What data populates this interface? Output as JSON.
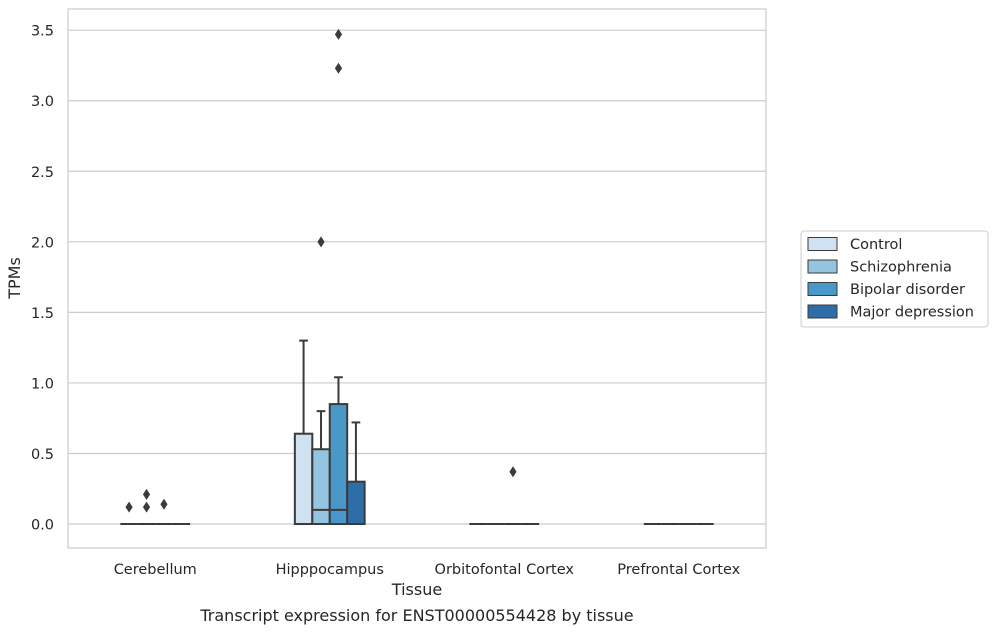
{
  "caption": "Transcript expression for ENST00000554428 by tissue",
  "chart_data": {
    "type": "box",
    "title": "",
    "xlabel": "Tissue",
    "ylabel": "TPMs",
    "ylim": [
      -0.17,
      3.65
    ],
    "yticks": [
      0.0,
      0.5,
      1.0,
      1.5,
      2.0,
      2.5,
      3.0,
      3.5
    ],
    "ytick_labels": [
      "0.0",
      "0.5",
      "1.0",
      "1.5",
      "2.0",
      "2.5",
      "3.0",
      "3.5"
    ],
    "grid": "y",
    "legend_position": "right",
    "categories": [
      "Cerebellum",
      "Hipppocampus",
      "Orbitofontal Cortex",
      "Prefrontal Cortex"
    ],
    "series": [
      {
        "name": "Control",
        "color": "#d0e1f2",
        "boxes": [
          {
            "whislo": 0.0,
            "q1": 0.0,
            "med": 0.0,
            "q3": 0.0,
            "whishi": 0.0,
            "fliers": [
              0.12
            ]
          },
          {
            "whislo": 0.0,
            "q1": 0.0,
            "med": 0.0,
            "q3": 0.64,
            "whishi": 1.3,
            "fliers": []
          },
          {
            "whislo": 0.0,
            "q1": 0.0,
            "med": 0.0,
            "q3": 0.0,
            "whishi": 0.0,
            "fliers": []
          },
          {
            "whislo": 0.0,
            "q1": 0.0,
            "med": 0.0,
            "q3": 0.0,
            "whishi": 0.0,
            "fliers": []
          }
        ]
      },
      {
        "name": "Schizophrenia",
        "color": "#94c4df",
        "boxes": [
          {
            "whislo": 0.0,
            "q1": 0.0,
            "med": 0.0,
            "q3": 0.0,
            "whishi": 0.0,
            "fliers": [
              0.12,
              0.21
            ]
          },
          {
            "whislo": 0.0,
            "q1": 0.0,
            "med": 0.1,
            "q3": 0.53,
            "whishi": 0.8,
            "fliers": [
              2.0
            ]
          },
          {
            "whislo": 0.0,
            "q1": 0.0,
            "med": 0.0,
            "q3": 0.0,
            "whishi": 0.0,
            "fliers": []
          },
          {
            "whislo": 0.0,
            "q1": 0.0,
            "med": 0.0,
            "q3": 0.0,
            "whishi": 0.0,
            "fliers": []
          }
        ]
      },
      {
        "name": "Bipolar disorder",
        "color": "#4a98c9",
        "boxes": [
          {
            "whislo": 0.0,
            "q1": 0.0,
            "med": 0.0,
            "q3": 0.0,
            "whishi": 0.0,
            "fliers": [
              0.14
            ]
          },
          {
            "whislo": 0.0,
            "q1": 0.0,
            "med": 0.1,
            "q3": 0.85,
            "whishi": 1.04,
            "fliers": [
              3.23,
              3.47
            ]
          },
          {
            "whislo": 0.0,
            "q1": 0.0,
            "med": 0.0,
            "q3": 0.0,
            "whishi": 0.0,
            "fliers": [
              0.37
            ]
          },
          {
            "whislo": 0.0,
            "q1": 0.0,
            "med": 0.0,
            "q3": 0.0,
            "whishi": 0.0,
            "fliers": []
          }
        ]
      },
      {
        "name": "Major depression",
        "color": "#2e6ea8",
        "boxes": [
          {
            "whislo": 0.0,
            "q1": 0.0,
            "med": 0.0,
            "q3": 0.0,
            "whishi": 0.0,
            "fliers": []
          },
          {
            "whislo": 0.0,
            "q1": 0.0,
            "med": 0.0,
            "q3": 0.3,
            "whishi": 0.72,
            "fliers": []
          },
          {
            "whislo": 0.0,
            "q1": 0.0,
            "med": 0.0,
            "q3": 0.0,
            "whishi": 0.0,
            "fliers": []
          },
          {
            "whislo": 0.0,
            "q1": 0.0,
            "med": 0.0,
            "q3": 0.0,
            "whishi": 0.0,
            "fliers": []
          }
        ]
      }
    ]
  }
}
